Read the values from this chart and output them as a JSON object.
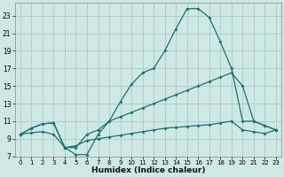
{
  "xlabel": "Humidex (Indice chaleur)",
  "xlim": [
    -0.5,
    23.5
  ],
  "ylim": [
    7,
    24.5
  ],
  "xticks": [
    0,
    1,
    2,
    3,
    4,
    5,
    6,
    7,
    8,
    9,
    10,
    11,
    12,
    13,
    14,
    15,
    16,
    17,
    18,
    19,
    20,
    21,
    22,
    23
  ],
  "yticks": [
    7,
    9,
    11,
    13,
    15,
    17,
    19,
    21,
    23
  ],
  "bg_color": "#cde8e5",
  "grid_color": "#b0ceca",
  "line_color": "#1e7070",
  "line1_x": [
    0,
    1,
    2,
    3,
    4,
    5,
    6,
    7,
    8,
    9,
    10,
    11,
    12,
    13,
    14,
    15,
    16,
    17,
    18,
    19,
    20,
    21,
    22,
    23
  ],
  "line1_y": [
    9.5,
    10.2,
    10.7,
    10.8,
    8.0,
    7.2,
    7.2,
    9.5,
    11.0,
    13.2,
    15.2,
    16.5,
    17.0,
    19.0,
    21.5,
    23.8,
    23.8,
    22.8,
    20.0,
    17.0,
    11.0,
    11.0,
    10.5,
    10.0
  ],
  "line2_x": [
    0,
    1,
    2,
    3,
    4,
    5,
    6,
    7,
    8,
    9,
    10,
    11,
    12,
    13,
    14,
    15,
    16,
    17,
    18,
    19,
    20,
    21,
    22,
    23
  ],
  "line2_y": [
    9.5,
    10.2,
    10.7,
    10.8,
    8.0,
    8.0,
    9.5,
    10.0,
    11.0,
    11.5,
    12.0,
    12.5,
    13.0,
    13.5,
    14.0,
    14.5,
    15.0,
    15.5,
    16.0,
    16.5,
    15.0,
    11.0,
    10.5,
    10.0
  ],
  "line3_x": [
    0,
    1,
    2,
    3,
    4,
    5,
    6,
    7,
    8,
    9,
    10,
    11,
    12,
    13,
    14,
    15,
    16,
    17,
    18,
    19,
    20,
    21,
    22,
    23
  ],
  "line3_y": [
    9.5,
    9.7,
    9.8,
    9.5,
    8.0,
    8.2,
    8.8,
    9.0,
    9.2,
    9.4,
    9.6,
    9.8,
    10.0,
    10.2,
    10.3,
    10.4,
    10.5,
    10.6,
    10.8,
    11.0,
    10.0,
    9.8,
    9.6,
    10.0
  ]
}
